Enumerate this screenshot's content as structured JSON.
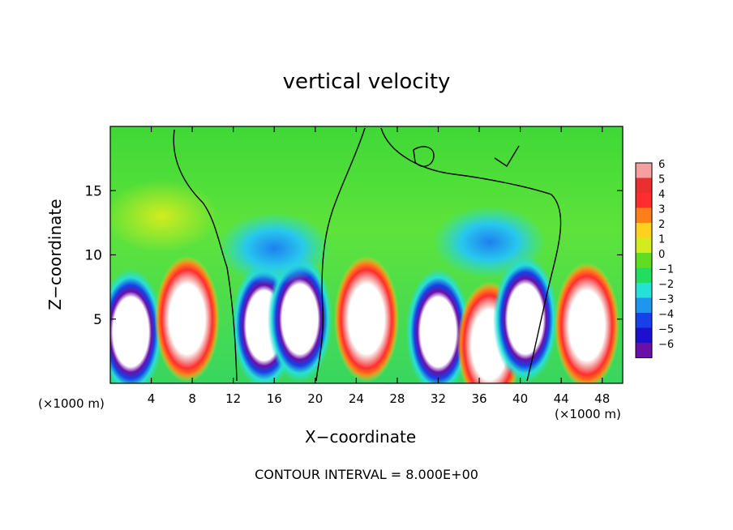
{
  "chart_data": {
    "type": "heatmap",
    "title": "vertical velocity",
    "xlabel": "X−coordinate",
    "ylabel": "Z−coordinate",
    "x_unit_left": "(×1000 m)",
    "x_unit_right": "(×1000 m)",
    "xlim": [
      0,
      50
    ],
    "ylim": [
      0,
      20
    ],
    "x_ticks": [
      4,
      8,
      12,
      16,
      20,
      24,
      28,
      32,
      36,
      40,
      44,
      48
    ],
    "y_ticks": [
      5,
      10,
      15
    ],
    "colorbar": {
      "ticks": [
        6,
        5,
        4,
        3,
        2,
        1,
        0,
        -1,
        -2,
        -3,
        -4,
        -5,
        -6
      ],
      "tick_labels": [
        "6",
        "5",
        "4",
        "3",
        "2",
        "1",
        "0",
        "−1",
        "−2",
        "−3",
        "−4",
        "−5",
        "−6"
      ],
      "colors": [
        "#f4a0a0",
        "#e83030",
        "#ff2d2d",
        "#ff7f1a",
        "#ffd21f",
        "#d2ec1f",
        "#60dd20",
        "#22dd60",
        "#27e0d6",
        "#1e95ee",
        "#1740e6",
        "#1d10cc",
        "#6a0fa8"
      ]
    },
    "cells": [
      {
        "x": 2,
        "z": 4,
        "w": -6
      },
      {
        "x": 7.5,
        "z": 5,
        "w": 6
      },
      {
        "x": 15,
        "z": 4.5,
        "w": -6
      },
      {
        "x": 18.5,
        "z": 5,
        "w": -6
      },
      {
        "x": 25,
        "z": 5,
        "w": 6
      },
      {
        "x": 32,
        "z": 4,
        "w": -6
      },
      {
        "x": 37,
        "z": 3,
        "w": 6
      },
      {
        "x": 40.5,
        "z": 5,
        "w": -6
      },
      {
        "x": 46.5,
        "z": 4.5,
        "w": 6
      },
      {
        "x": 16,
        "z": 10.5,
        "w": -3
      },
      {
        "x": 37,
        "z": 11,
        "w": -2
      },
      {
        "x": 5,
        "z": 13,
        "w": 1
      }
    ],
    "footer": "CONTOUR INTERVAL = 8.000E+00"
  }
}
